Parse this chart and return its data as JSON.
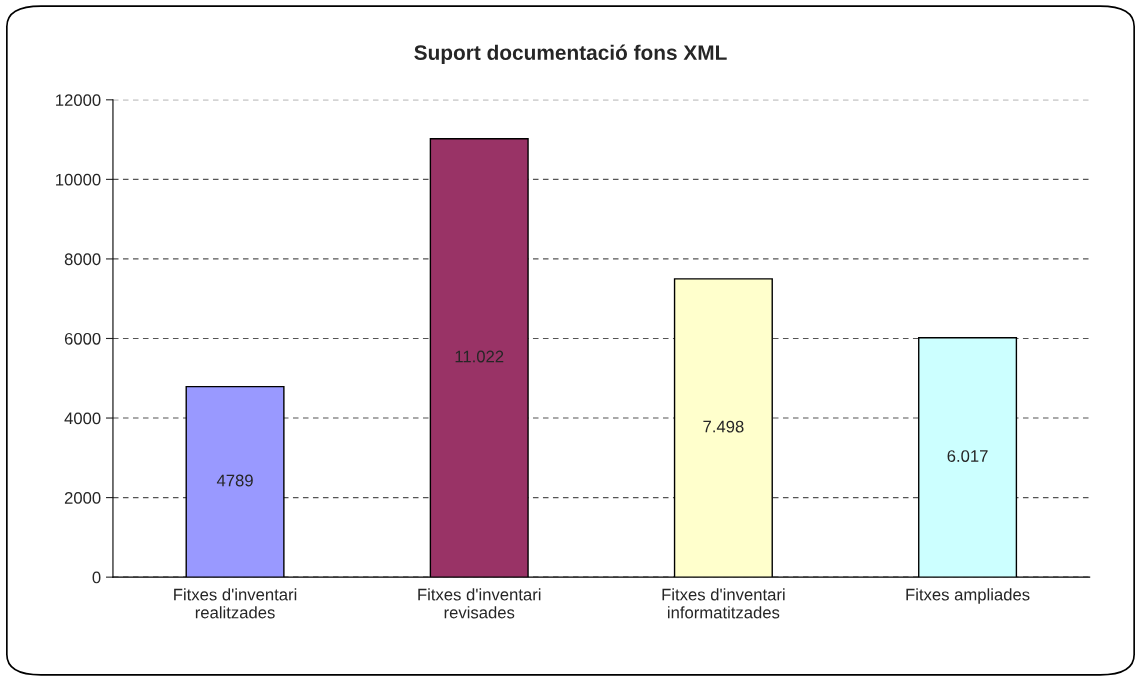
{
  "chart_data": {
    "type": "bar",
    "title": "Suport documentació fons XML",
    "categories": [
      "Fitxes d'inventari\nrealitzades",
      "Fitxes d'inventari\nrevisades",
      "Fitxes d'inventari\ninformatitzades",
      "Fitxes ampliades"
    ],
    "values": [
      4789,
      11022,
      7498,
      6017
    ],
    "colors": [
      "#9999ff",
      "#993366",
      "#ffffcc",
      "#ccffff"
    ],
    "value_labels": [
      "4789",
      "11.022",
      "7.498",
      "6.017"
    ],
    "ylim": [
      0,
      12000
    ],
    "yticks": [
      0,
      2000,
      4000,
      6000,
      8000,
      10000,
      12000
    ],
    "grid": "y",
    "line_style": "dashed",
    "legend": false
  }
}
